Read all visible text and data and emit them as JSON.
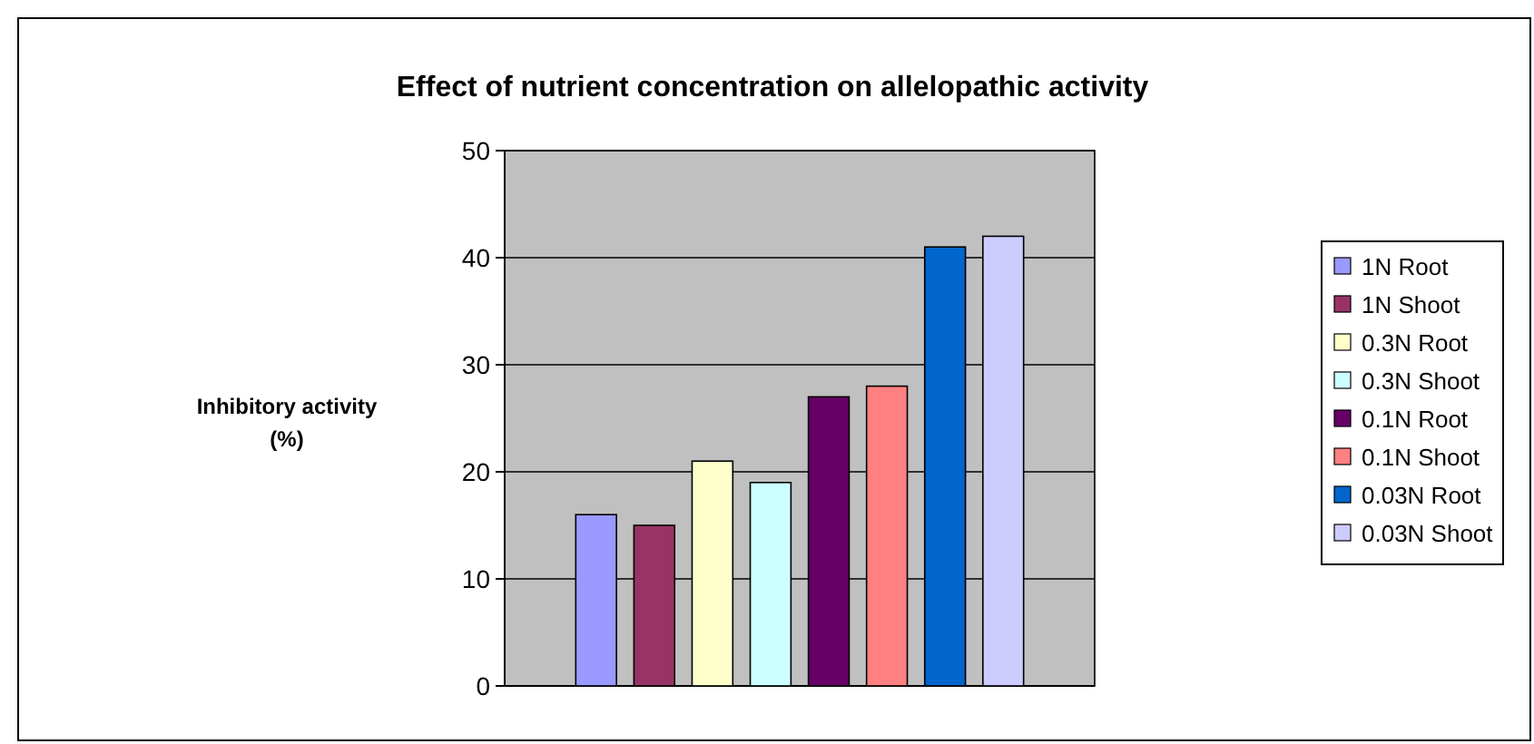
{
  "chart_data": {
    "type": "bar",
    "title": "Effect of nutrient concentration on allelopathic activity",
    "ylabel": "Inhibitory activity\n(%)",
    "categories": [
      null
    ],
    "series": [
      {
        "name": "1N Root",
        "color": "#9999ff",
        "values": [
          16
        ]
      },
      {
        "name": "1N Shoot",
        "color": "#993366",
        "values": [
          15
        ]
      },
      {
        "name": "0.3N Root",
        "color": "#ffffcc",
        "values": [
          21
        ]
      },
      {
        "name": "0.3N Shoot",
        "color": "#ccffff",
        "values": [
          19
        ]
      },
      {
        "name": "0.1N Root",
        "color": "#660066",
        "values": [
          27
        ]
      },
      {
        "name": "0.1N Shoot",
        "color": "#ff8080",
        "values": [
          28
        ]
      },
      {
        "name": "0.03N Root",
        "color": "#0066cc",
        "values": [
          41
        ]
      },
      {
        "name": "0.03N Shoot",
        "color": "#ccccff",
        "values": [
          42
        ]
      }
    ],
    "ylim": [
      0,
      50
    ],
    "yticks": [
      0,
      10,
      20,
      30,
      40,
      50
    ],
    "grid": "y",
    "legend": "right"
  }
}
